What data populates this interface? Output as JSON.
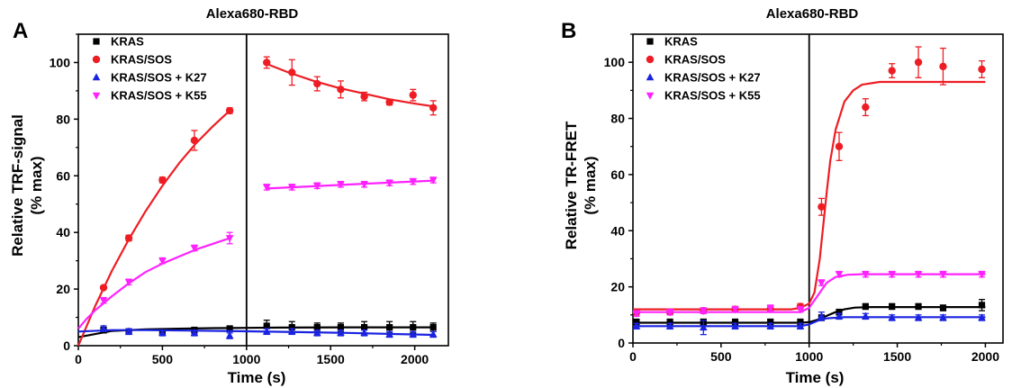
{
  "chart_data": [
    {
      "type": "scatter",
      "panel_label": "A",
      "title": "Alexa680-RBD",
      "xlabel": "Time (s)",
      "ylabel_lines": [
        "Relative TRF-signal",
        "(% max)"
      ],
      "xlim": [
        0,
        2200
      ],
      "ylim": [
        0,
        110
      ],
      "xticks": [
        0,
        500,
        1000,
        1500,
        2000
      ],
      "yticks": [
        0,
        20,
        40,
        60,
        80,
        100
      ],
      "vline_x": 1000,
      "legend_position": "top-left",
      "series": [
        {
          "name": "KRAS",
          "color": "#000000",
          "marker": "square",
          "points": [
            [
              150,
              5.5
            ],
            [
              300,
              5
            ],
            [
              500,
              5
            ],
            [
              690,
              5.5
            ],
            [
              900,
              6
            ],
            [
              1120,
              7
            ],
            [
              1270,
              6.5
            ],
            [
              1420,
              6.5
            ],
            [
              1560,
              6.5
            ],
            [
              1700,
              6.5
            ],
            [
              1850,
              6.5
            ],
            [
              1990,
              6.5
            ],
            [
              2110,
              6.5
            ]
          ],
          "errors": [
            1,
            1,
            1,
            1,
            1,
            2,
            2,
            1.5,
            1.5,
            2,
            2,
            2,
            1.5
          ],
          "fit": [
            [
              0,
              3
            ],
            [
              200,
              5.2
            ],
            [
              400,
              5.8
            ],
            [
              600,
              6
            ],
            [
              800,
              6.2
            ],
            [
              1000,
              6.3
            ],
            [
              1200,
              6.4
            ],
            [
              1600,
              6.5
            ],
            [
              2000,
              6.5
            ],
            [
              2110,
              6.5
            ]
          ]
        },
        {
          "name": "KRAS/SOS",
          "color": "#ee1d24",
          "marker": "circle",
          "points": [
            [
              150,
              20.5
            ],
            [
              300,
              38
            ],
            [
              500,
              58.5
            ],
            [
              690,
              72.5
            ],
            [
              900,
              83
            ],
            [
              1120,
              100
            ],
            [
              1270,
              96.5
            ],
            [
              1420,
              92.5
            ],
            [
              1560,
              90.5
            ],
            [
              1700,
              88
            ],
            [
              1850,
              86
            ],
            [
              1990,
              88.5
            ],
            [
              2110,
              84
            ]
          ],
          "errors": [
            0.5,
            1,
            1,
            3.5,
            1,
            2,
            4.5,
            2.5,
            3,
            1.5,
            1,
            2,
            2.5
          ],
          "fit_segments": [
            [
              [
                0,
                0
              ],
              [
                100,
                14
              ],
              [
                200,
                26.5
              ],
              [
                300,
                37.5
              ],
              [
                400,
                47.5
              ],
              [
                500,
                56.5
              ],
              [
                600,
                64.5
              ],
              [
                700,
                71.5
              ],
              [
                800,
                77.5
              ],
              [
                900,
                83
              ]
            ],
            [
              [
                1120,
                99.5
              ],
              [
                1250,
                96.5
              ],
              [
                1400,
                93.5
              ],
              [
                1550,
                91
              ],
              [
                1700,
                89
              ],
              [
                1850,
                87
              ],
              [
                2000,
                85.5
              ],
              [
                2110,
                84.5
              ]
            ]
          ]
        },
        {
          "name": "KRAS/SOS + K27",
          "color": "#1a23e0",
          "marker": "triangle-up",
          "points": [
            [
              150,
              6
            ],
            [
              300,
              5
            ],
            [
              500,
              4.5
            ],
            [
              690,
              4.5
            ],
            [
              900,
              3.5
            ],
            [
              1120,
              5
            ],
            [
              1270,
              5
            ],
            [
              1420,
              4.5
            ],
            [
              1560,
              4.5
            ],
            [
              1700,
              4.5
            ],
            [
              1850,
              4
            ],
            [
              1990,
              4
            ],
            [
              2110,
              4
            ]
          ],
          "errors": [
            1,
            1,
            1,
            1,
            1,
            1,
            1,
            1,
            1,
            1,
            1,
            1,
            1
          ],
          "fit": [
            [
              0,
              5
            ],
            [
              200,
              5.5
            ],
            [
              400,
              5.5
            ],
            [
              700,
              5.3
            ],
            [
              1000,
              5.1
            ],
            [
              1300,
              4.8
            ],
            [
              1600,
              4.5
            ],
            [
              1900,
              4.1
            ],
            [
              2110,
              3.8
            ]
          ]
        },
        {
          "name": "KRAS/SOS + K55",
          "color": "#ff22ff",
          "marker": "triangle-down",
          "points": [
            [
              150,
              16
            ],
            [
              300,
              22.5
            ],
            [
              500,
              30
            ],
            [
              690,
              34.5
            ],
            [
              900,
              38
            ],
            [
              1120,
              56
            ],
            [
              1270,
              56
            ],
            [
              1420,
              56.5
            ],
            [
              1560,
              57
            ],
            [
              1700,
              57
            ],
            [
              1850,
              57.5
            ],
            [
              1990,
              58
            ],
            [
              2110,
              58.5
            ]
          ],
          "errors": [
            1,
            1,
            1,
            1,
            2,
            1,
            1,
            1,
            1,
            1,
            1,
            1,
            1
          ],
          "fit_segments": [
            [
              [
                0,
                6
              ],
              [
                50,
                9.5
              ],
              [
                100,
                12.5
              ],
              [
                200,
                17.5
              ],
              [
                300,
                22
              ],
              [
                400,
                26
              ],
              [
                500,
                29
              ],
              [
                600,
                31.5
              ],
              [
                700,
                34
              ],
              [
                800,
                36
              ],
              [
                900,
                38
              ]
            ],
            [
              [
                1120,
                55.5
              ],
              [
                1400,
                56.3
              ],
              [
                1700,
                57.2
              ],
              [
                2000,
                58
              ],
              [
                2110,
                58.3
              ]
            ]
          ]
        }
      ]
    },
    {
      "type": "scatter",
      "panel_label": "B",
      "title": "Alexa680-RBD",
      "xlabel": "Time (s)",
      "ylabel_lines": [
        "Relative TR-FRET",
        "(% max)"
      ],
      "xlim": [
        0,
        2100
      ],
      "ylim": [
        0,
        110
      ],
      "xticks": [
        0,
        500,
        1000,
        1500,
        2000
      ],
      "yticks": [
        0,
        20,
        40,
        60,
        80,
        100
      ],
      "vline_x": 1000,
      "legend_position": "top-left",
      "series": [
        {
          "name": "KRAS",
          "color": "#000000",
          "marker": "square",
          "points": [
            [
              20,
              7.5
            ],
            [
              210,
              7.5
            ],
            [
              400,
              7.5
            ],
            [
              580,
              7.5
            ],
            [
              780,
              7.5
            ],
            [
              950,
              7.5
            ],
            [
              1070,
              9
            ],
            [
              1170,
              11
            ],
            [
              1320,
              13
            ],
            [
              1470,
              13
            ],
            [
              1620,
              13
            ],
            [
              1760,
              12.5
            ],
            [
              1980,
              13.5
            ]
          ],
          "errors": [
            1,
            1,
            1,
            1,
            1,
            1,
            1,
            1,
            1,
            1,
            1,
            1,
            2
          ],
          "fit": [
            [
              0,
              7.2
            ],
            [
              950,
              7.2
            ],
            [
              1000,
              7.4
            ],
            [
              1050,
              8.3
            ],
            [
              1100,
              9.7
            ],
            [
              1150,
              11
            ],
            [
              1200,
              12
            ],
            [
              1260,
              12.6
            ],
            [
              1350,
              12.8
            ],
            [
              2000,
              12.8
            ]
          ]
        },
        {
          "name": "KRAS/SOS",
          "color": "#ee1d24",
          "marker": "circle",
          "points": [
            [
              20,
              11
            ],
            [
              210,
              11
            ],
            [
              400,
              11.5
            ],
            [
              580,
              12
            ],
            [
              780,
              12
            ],
            [
              950,
              13
            ],
            [
              1070,
              48.5
            ],
            [
              1170,
              70
            ],
            [
              1320,
              84
            ],
            [
              1470,
              97
            ],
            [
              1620,
              100
            ],
            [
              1760,
              98.5
            ],
            [
              1980,
              97.5
            ]
          ],
          "errors": [
            1,
            1,
            1,
            1,
            1,
            1,
            3,
            5,
            3,
            2.5,
            5.5,
            6.5,
            3
          ],
          "fit": [
            [
              0,
              12
            ],
            [
              900,
              12
            ],
            [
              950,
              12.5
            ],
            [
              1000,
              14
            ],
            [
              1030,
              18
            ],
            [
              1060,
              30
            ],
            [
              1080,
              42
            ],
            [
              1100,
              54
            ],
            [
              1120,
              65
            ],
            [
              1150,
              76
            ],
            [
              1200,
              86
            ],
            [
              1250,
              90
            ],
            [
              1300,
              92
            ],
            [
              1400,
              93
            ],
            [
              2000,
              93
            ]
          ]
        },
        {
          "name": "KRAS/SOS + K27",
          "color": "#1a23e0",
          "marker": "triangle-up",
          "points": [
            [
              20,
              6
            ],
            [
              210,
              6
            ],
            [
              400,
              5.5
            ],
            [
              580,
              6
            ],
            [
              780,
              6
            ],
            [
              950,
              6
            ],
            [
              1070,
              9.5
            ],
            [
              1170,
              9.5
            ],
            [
              1320,
              9.5
            ],
            [
              1470,
              9
            ],
            [
              1620,
              9
            ],
            [
              1760,
              9
            ],
            [
              1980,
              9
            ]
          ],
          "errors": [
            1,
            1,
            2.5,
            1,
            1,
            1,
            1.5,
            1,
            1,
            1,
            1,
            1,
            1
          ],
          "fit": [
            [
              0,
              6
            ],
            [
              950,
              6
            ],
            [
              1000,
              6.6
            ],
            [
              1050,
              8
            ],
            [
              1100,
              8.8
            ],
            [
              1200,
              9.2
            ],
            [
              2000,
              9.2
            ]
          ]
        },
        {
          "name": "KRAS/SOS + K55",
          "color": "#ff22ff",
          "marker": "triangle-down",
          "points": [
            [
              20,
              10.5
            ],
            [
              210,
              11
            ],
            [
              400,
              11.5
            ],
            [
              580,
              12
            ],
            [
              780,
              12.5
            ],
            [
              950,
              12
            ],
            [
              1070,
              21.5
            ],
            [
              1170,
              24.5
            ],
            [
              1320,
              24.5
            ],
            [
              1470,
              24.5
            ],
            [
              1620,
              24.5
            ],
            [
              1760,
              24.5
            ],
            [
              1980,
              24.5
            ]
          ],
          "errors": [
            1,
            1,
            1,
            1,
            1,
            1,
            1,
            1,
            1,
            1,
            1,
            1,
            1
          ],
          "fit": [
            [
              0,
              11
            ],
            [
              950,
              11
            ],
            [
              1000,
              12.5
            ],
            [
              1050,
              17
            ],
            [
              1100,
              21.5
            ],
            [
              1150,
              23.5
            ],
            [
              1220,
              24.3
            ],
            [
              1300,
              24.5
            ],
            [
              2000,
              24.5
            ]
          ]
        }
      ]
    }
  ]
}
